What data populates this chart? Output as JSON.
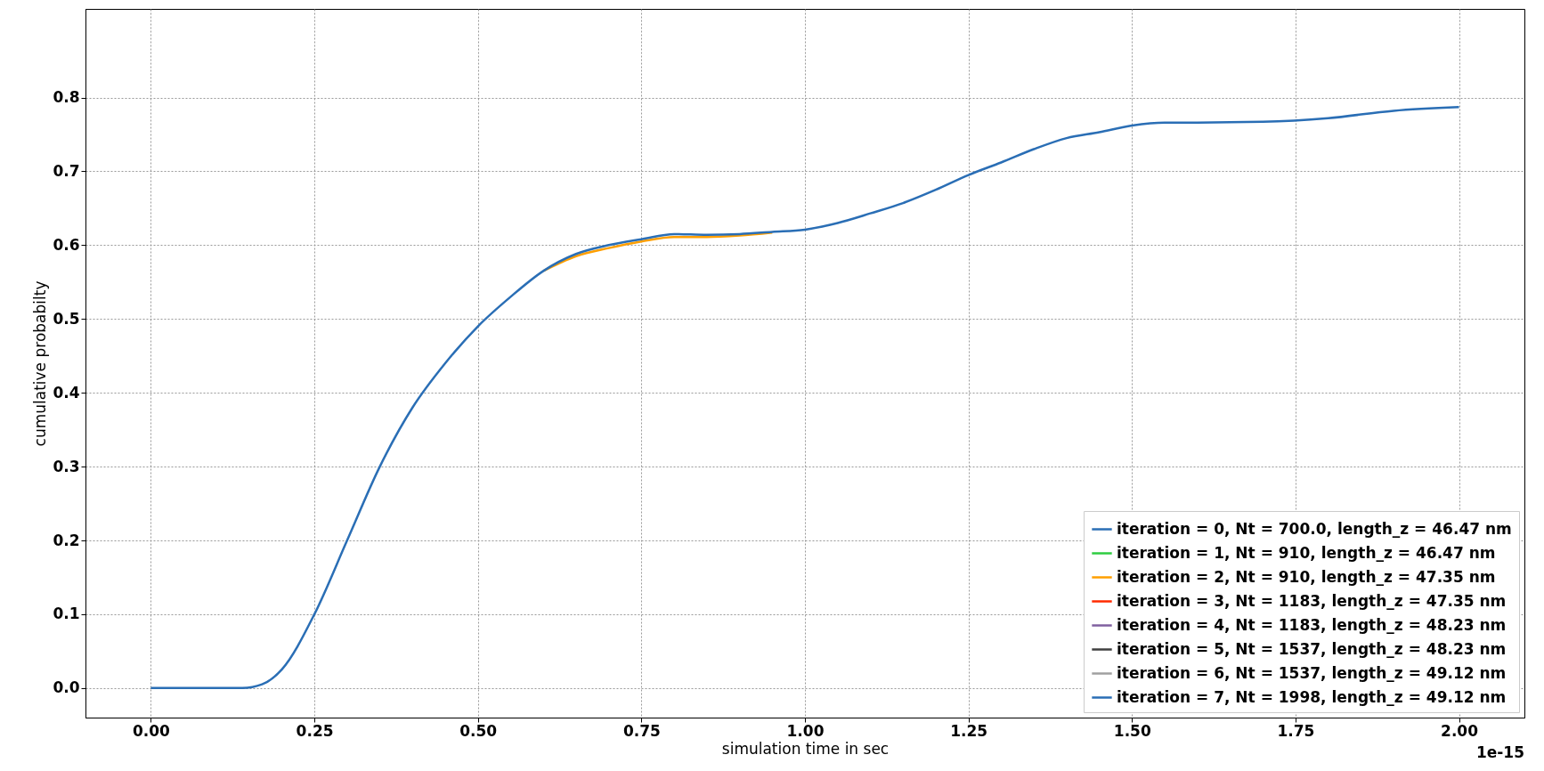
{
  "chart_data": {
    "type": "line",
    "xlabel": "simulation time in sec",
    "ylabel": "cumulative probabilty",
    "annotations": [
      "1e-15"
    ],
    "x": [
      0,
      0.14,
      0.17,
      0.2,
      0.25,
      0.3,
      0.35,
      0.4,
      0.45,
      0.5,
      0.55,
      0.6,
      0.65,
      0.7,
      0.75,
      0.8,
      0.85,
      0.9,
      0.95,
      1.0,
      1.05,
      1.1,
      1.15,
      1.2,
      1.25,
      1.3,
      1.35,
      1.4,
      1.45,
      1.5,
      1.55,
      1.6,
      1.7,
      1.8,
      1.9,
      2.0
    ],
    "series": [
      {
        "name": "iteration = 0, Nt = 700.0, length_z = 46.47 nm",
        "color": "#2a6eb5",
        "values": [
          null,
          null,
          null,
          null,
          null,
          null,
          null,
          null,
          null,
          null,
          null,
          null,
          null,
          null,
          null,
          null,
          null,
          null,
          null,
          null,
          null,
          null,
          null,
          null,
          null,
          null,
          null,
          null,
          null,
          null,
          null,
          null,
          null,
          null,
          null,
          null
        ]
      },
      {
        "name": "iteration = 1, Nt = 910, length_z = 46.47 nm",
        "color": "#2ecc40",
        "values": [
          null,
          null,
          null,
          null,
          null,
          null,
          null,
          null,
          null,
          null,
          null,
          null,
          null,
          null,
          null,
          null,
          null,
          null,
          null,
          null,
          null,
          null,
          null,
          null,
          null,
          null,
          null,
          null,
          null,
          null,
          null,
          null,
          null,
          null,
          null,
          null
        ]
      },
      {
        "name": "iteration = 2, Nt = 910, length_z = 47.35 nm",
        "color": "#ff9f00",
        "values": [
          null,
          null,
          null,
          null,
          null,
          null,
          null,
          null,
          null,
          null,
          null,
          0.565,
          0.585,
          0.596,
          0.605,
          0.611,
          0.611,
          0.613,
          0.617,
          null,
          null,
          null,
          null,
          null,
          null,
          null,
          null,
          null,
          null,
          null,
          null,
          null,
          null,
          null,
          null,
          null
        ]
      },
      {
        "name": "iteration = 3, Nt = 1183, length_z = 47.35 nm",
        "color": "#ff2a00",
        "values": [
          null,
          null,
          null,
          null,
          null,
          null,
          null,
          null,
          null,
          null,
          null,
          null,
          null,
          null,
          null,
          null,
          null,
          null,
          null,
          null,
          null,
          null,
          null,
          null,
          null,
          null,
          null,
          null,
          null,
          null,
          null,
          null,
          null,
          null,
          null,
          null
        ]
      },
      {
        "name": "iteration = 4, Nt = 1183, length_z = 48.23 nm",
        "color": "#8060a0",
        "values": [
          null,
          null,
          null,
          null,
          null,
          null,
          null,
          null,
          null,
          null,
          null,
          null,
          null,
          null,
          null,
          null,
          null,
          null,
          null,
          null,
          null,
          null,
          null,
          null,
          null,
          null,
          null,
          null,
          null,
          null,
          null,
          null,
          null,
          null,
          null,
          null
        ]
      },
      {
        "name": "iteration = 5, Nt = 1537, length_z = 48.23 nm",
        "color": "#404040",
        "values": [
          null,
          null,
          null,
          null,
          null,
          null,
          null,
          null,
          null,
          null,
          null,
          null,
          null,
          null,
          null,
          null,
          null,
          null,
          null,
          null,
          null,
          null,
          null,
          null,
          null,
          null,
          null,
          null,
          null,
          null,
          null,
          null,
          null,
          null,
          null,
          null
        ]
      },
      {
        "name": "iteration = 6, Nt = 1537, length_z = 49.12 nm",
        "color": "#a0a0a0",
        "values": [
          null,
          null,
          null,
          null,
          null,
          null,
          null,
          null,
          null,
          null,
          null,
          null,
          null,
          null,
          null,
          null,
          null,
          null,
          null,
          null,
          null,
          null,
          null,
          null,
          null,
          null,
          null,
          null,
          null,
          null,
          null,
          null,
          null,
          null,
          null,
          null
        ]
      },
      {
        "name": "iteration = 7, Nt = 1998, length_z = 49.12 nm",
        "color": "#2a6eb5",
        "values": [
          0,
          0,
          0.005,
          0.025,
          0.1,
          0.2,
          0.3,
          0.38,
          0.44,
          0.49,
          0.53,
          0.565,
          0.588,
          0.6,
          0.608,
          0.615,
          0.614,
          0.615,
          0.618,
          0.621,
          0.63,
          0.643,
          0.657,
          0.675,
          0.695,
          0.712,
          0.73,
          0.745,
          0.753,
          0.762,
          0.766,
          0.766,
          0.767,
          0.772,
          0.782,
          0.787
        ]
      }
    ],
    "xlim": [
      -0.1,
      2.1
    ],
    "xticks": [
      {
        "value": 0,
        "label": "0.00"
      },
      {
        "value": 0.25,
        "label": "0.25"
      },
      {
        "value": 0.5,
        "label": "0.50"
      },
      {
        "value": 0.75,
        "label": "0.75"
      },
      {
        "value": 1.0,
        "label": "1.00"
      },
      {
        "value": 1.25,
        "label": "1.25"
      },
      {
        "value": 1.5,
        "label": "1.50"
      },
      {
        "value": 1.75,
        "label": "1.75"
      },
      {
        "value": 2.0,
        "label": "2.00"
      }
    ],
    "ylim": [
      -0.04,
      0.92
    ],
    "yticks": [
      {
        "value": 0,
        "label": "0.0"
      },
      0.1,
      0.2,
      0.3,
      0.4,
      0.5,
      0.6,
      0.7,
      0.8
    ],
    "grid": true,
    "legend": "bottom right",
    "line_style": "solid"
  }
}
